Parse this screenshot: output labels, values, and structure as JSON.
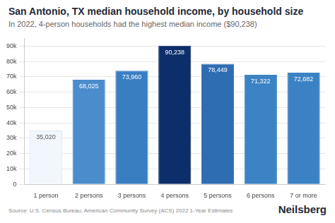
{
  "chart_data": {
    "type": "bar",
    "title": "San Antonio, TX median household income, by household size",
    "subtitle": "In 2022, 4-person households had the highest median income ($90,238)",
    "source": "Source: U.S. Census Bureau, American Community Survey (ACS) 2022 1-Year Estimates",
    "brand": "Neilsberg",
    "categories": [
      "1 person",
      "2 persons",
      "3 persons",
      "4 persons",
      "5 persons",
      "6 persons",
      "7 or more"
    ],
    "values": [
      35020,
      68025,
      73960,
      90238,
      78449,
      71322,
      72682
    ],
    "value_labels": [
      "35,020",
      "68,025",
      "73,960",
      "90,238",
      "78,449",
      "71,322",
      "72,682"
    ],
    "data_labels": true,
    "colors": [
      "#f2f7fd",
      "#4a8ccc",
      "#3a7ec2",
      "#0c2f6b",
      "#2f6db2",
      "#3c83c5",
      "#3a82c4"
    ],
    "ylim": [
      0,
      95000
    ],
    "yticks": [
      {
        "value": 0,
        "label": "0"
      },
      {
        "value": 10000,
        "label": "10k"
      },
      {
        "value": 20000,
        "label": "20k"
      },
      {
        "value": 30000,
        "label": "30k"
      },
      {
        "value": 40000,
        "label": "40k"
      },
      {
        "value": 50000,
        "label": "50k"
      },
      {
        "value": 60000,
        "label": "60k"
      },
      {
        "value": 70000,
        "label": "70k"
      },
      {
        "value": 80000,
        "label": "80k"
      },
      {
        "value": 90000,
        "label": "90k"
      }
    ],
    "grid": true
  }
}
